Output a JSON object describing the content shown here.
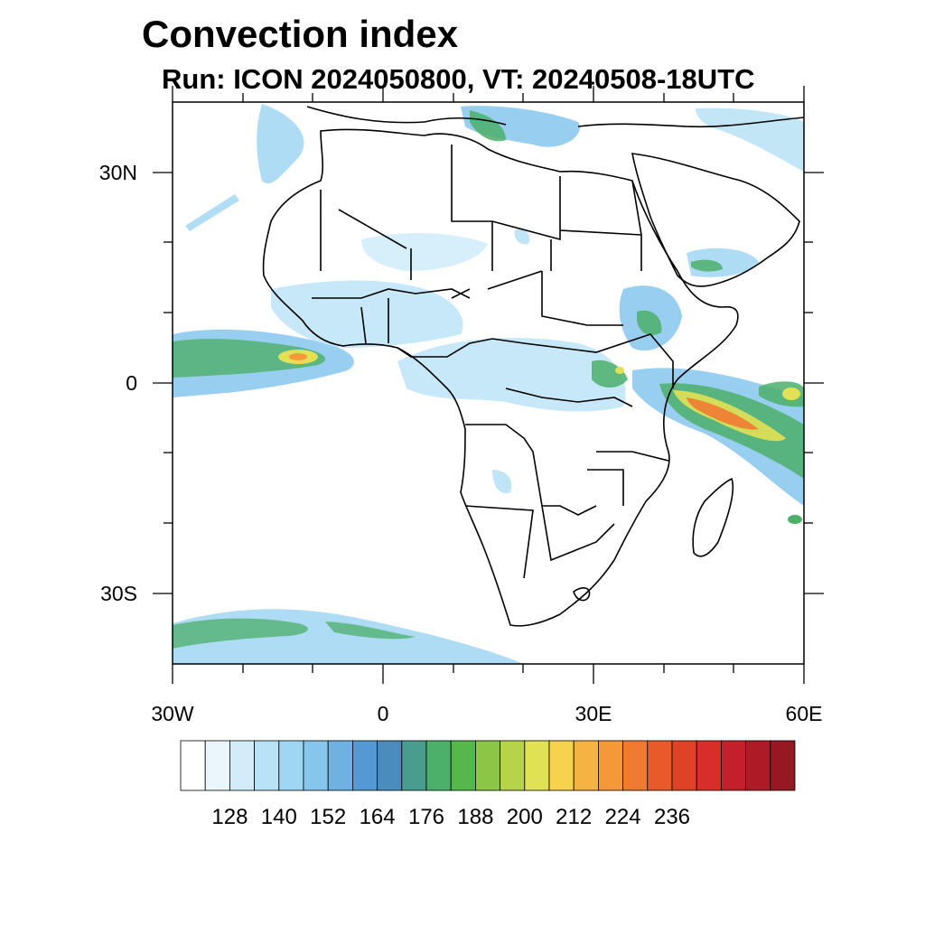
{
  "title": "Convection index",
  "subtitle": "Run: ICON 2024050800,  VT: 20240508-18UTC",
  "map": {
    "lon_range": [
      -30,
      60
    ],
    "lat_range": [
      -40,
      40
    ],
    "lon_labels": [
      "30W",
      "0",
      "30E",
      "60E"
    ],
    "lat_labels": [
      "30N",
      "0",
      "30S"
    ],
    "land_color": "#ffffff",
    "outline_color": "#000000"
  },
  "colorbar": {
    "colors": [
      "#ffffff",
      "#eaf6fc",
      "#d2edf9",
      "#b8e2f6",
      "#9fd6f2",
      "#86c6ec",
      "#6fb2e2",
      "#5599d3",
      "#4a8dbd",
      "#4a9c8e",
      "#4caf6a",
      "#55b84a",
      "#8cc646",
      "#b6d34a",
      "#e2e155",
      "#f6d24e",
      "#f7b342",
      "#f5983a",
      "#f07a32",
      "#e85a2a",
      "#e04228",
      "#d82e28",
      "#c4202a",
      "#ae1a26",
      "#961822"
    ],
    "labels": [
      "128",
      "140",
      "152",
      "164",
      "176",
      "188",
      "200",
      "212",
      "224",
      "236"
    ]
  }
}
